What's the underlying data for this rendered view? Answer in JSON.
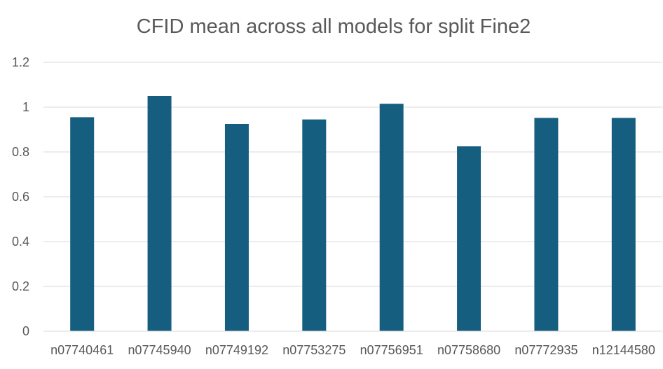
{
  "chart_data": {
    "type": "bar",
    "title": "CFID mean across all models for split Fine2",
    "xlabel": "",
    "ylabel": "",
    "categories": [
      "n07740461",
      "n07745940",
      "n07749192",
      "n07753275",
      "n07756951",
      "n07758680",
      "n07772935",
      "n12144580"
    ],
    "series": [
      {
        "values": [
          0.955,
          1.05,
          0.925,
          0.945,
          1.015,
          0.825,
          0.952,
          0.952
        ],
        "color": "#155E80"
      }
    ],
    "ylim": [
      0,
      1.2
    ],
    "yticks": [
      "0",
      "0.2",
      "0.4",
      "0.6",
      "0.8",
      "1",
      "1.2"
    ],
    "grid": true,
    "legend": "none",
    "colors": {
      "bar": "#155E80",
      "grid": "#d9d9d9",
      "text": "#595959"
    }
  }
}
